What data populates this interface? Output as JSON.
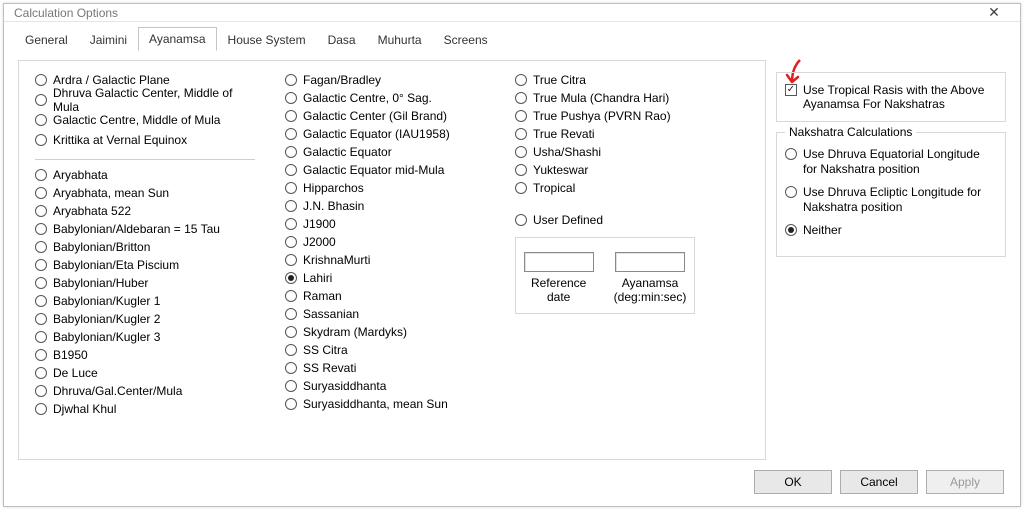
{
  "window": {
    "title": "Calculation Options"
  },
  "tabs": {
    "items": [
      "General",
      "Jaimini",
      "Ayanamsa",
      "House System",
      "Dasa",
      "Muhurta",
      "Screens"
    ],
    "active": 2
  },
  "col1_top": [
    "Ardra / Galactic Plane",
    "Dhruva Galactic Center, Middle of Mula",
    "Galactic Centre, Middle of Mula",
    "Krittika at Vernal Equinox"
  ],
  "col1_bottom": [
    "Aryabhata",
    "Aryabhata, mean Sun",
    "Aryabhata 522",
    "Babylonian/Aldebaran = 15 Tau",
    "Babylonian/Britton",
    "Babylonian/Eta Piscium",
    "Babylonian/Huber",
    "Babylonian/Kugler 1",
    "Babylonian/Kugler 2",
    "Babylonian/Kugler 3",
    "B1950",
    "De Luce",
    "Dhruva/Gal.Center/Mula",
    "Djwhal Khul"
  ],
  "col2": [
    "Fagan/Bradley",
    "Galactic Centre, 0° Sag.",
    "Galactic Center (Gil Brand)",
    "Galactic Equator (IAU1958)",
    "Galactic Equator",
    "Galactic Equator mid-Mula",
    "Hipparchos",
    "J.N. Bhasin",
    "J1900",
    "J2000",
    "KrishnaMurti",
    "Lahiri",
    "Raman",
    "Sassanian",
    "Skydram (Mardyks)",
    "SS Citra",
    "SS Revati",
    "Suryasiddhanta",
    "Suryasiddhanta, mean Sun"
  ],
  "col2_selected": 11,
  "col3": [
    "True Citra",
    "True Mula (Chandra Hari)",
    "True Pushya (PVRN Rao)",
    "True Revati",
    "Usha/Shashi",
    "Yukteswar",
    "Tropical"
  ],
  "user_defined": {
    "label": "User Defined",
    "ref_label": "Reference date",
    "ayan_label": "Ayanamsa\n(deg:min:sec)"
  },
  "tropical_check": {
    "label": "Use Tropical Rasis with the Above Ayanamsa For Nakshatras",
    "checked": true
  },
  "nakshatra": {
    "title": "Nakshatra Calculations",
    "options": [
      "Use Dhruva Equatorial Longitude for Nakshatra position",
      "Use Dhruva Ecliptic Longitude for Nakshatra position",
      "Neither"
    ],
    "selected": 2
  },
  "buttons": {
    "ok": "OK",
    "cancel": "Cancel",
    "apply": "Apply"
  }
}
